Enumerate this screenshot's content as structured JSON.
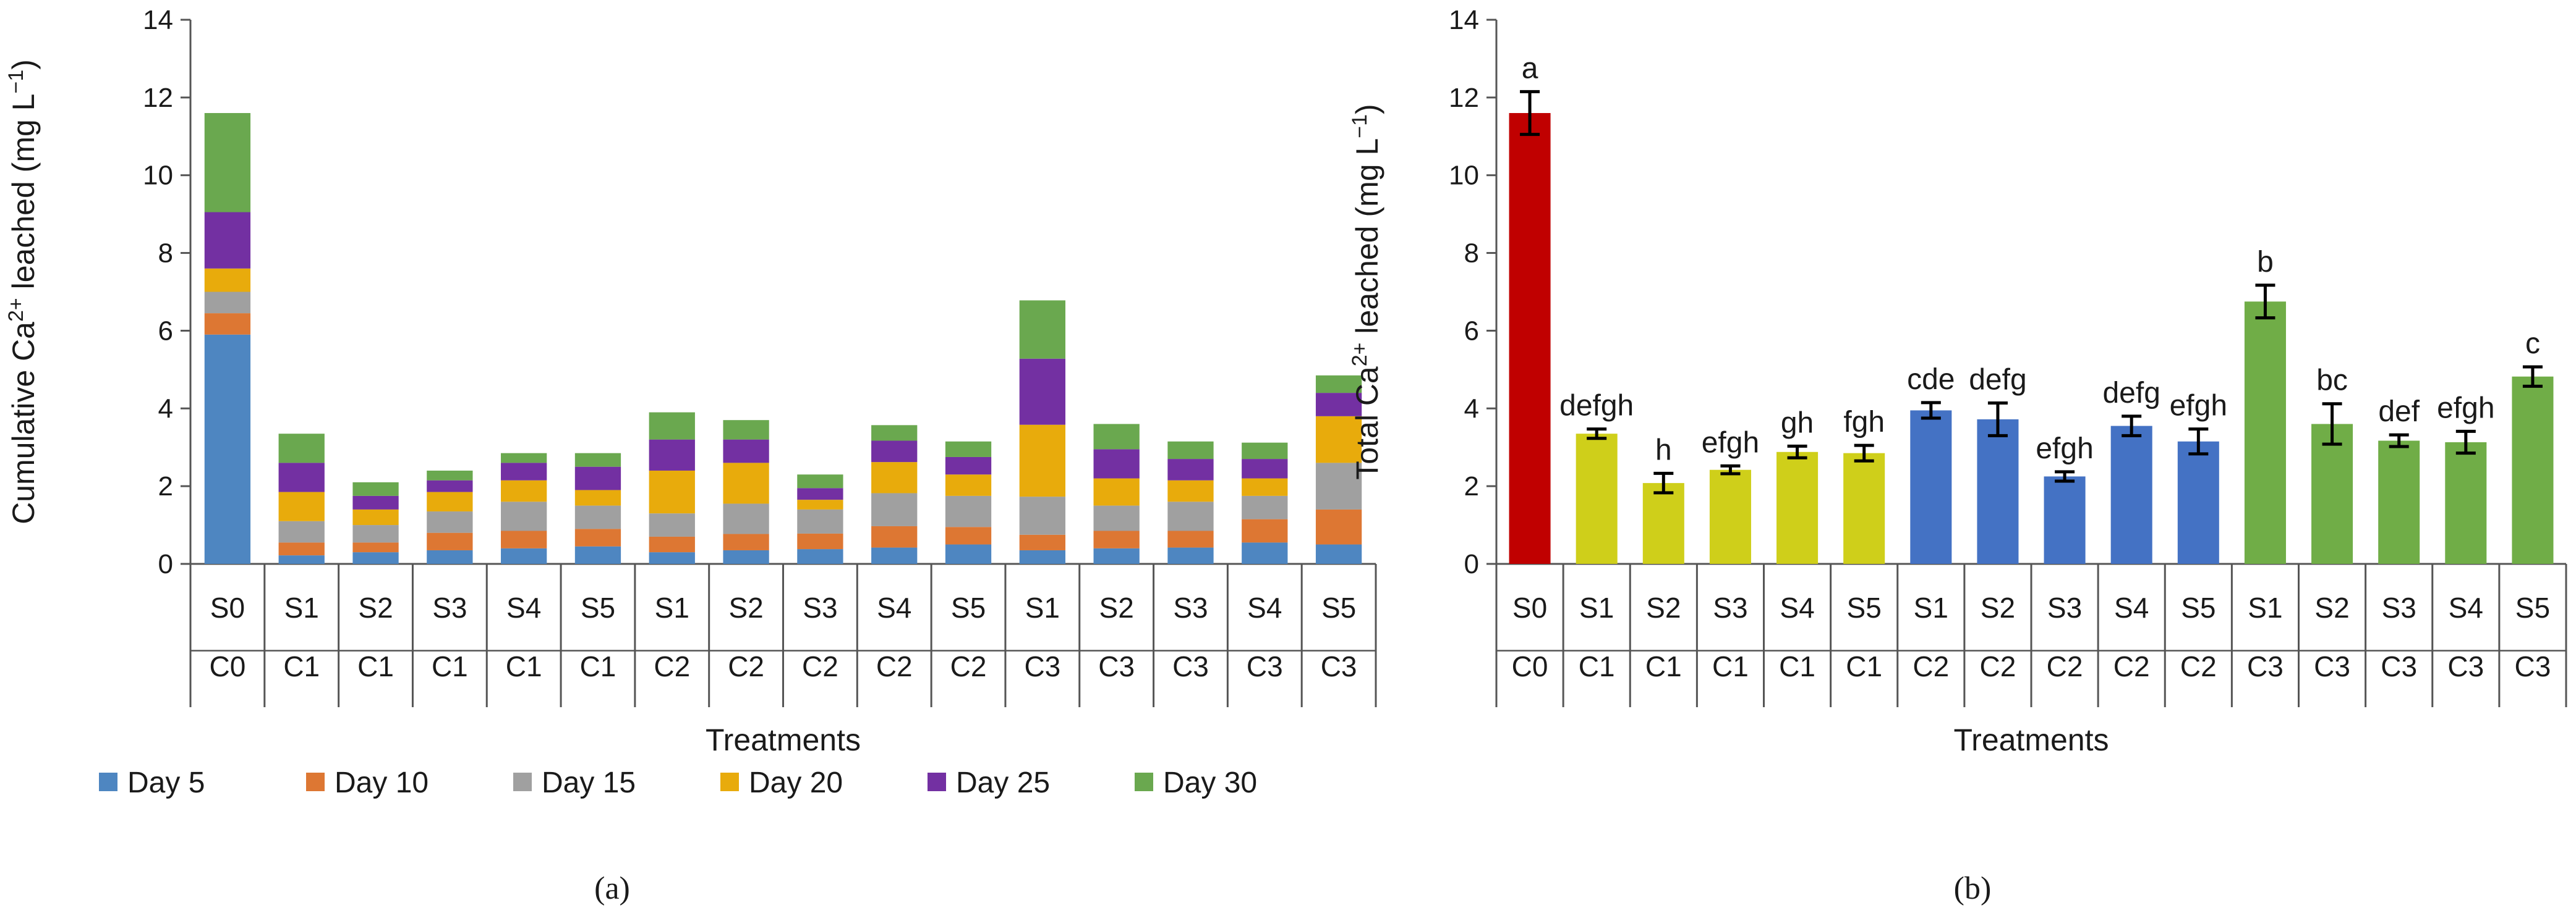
{
  "panels": [
    {
      "id": "a",
      "label": "(a)",
      "chart_data": {
        "type": "bar",
        "stacked": true,
        "categories": [
          [
            "S0",
            "C0"
          ],
          [
            "S1",
            "C1"
          ],
          [
            "S2",
            "C1"
          ],
          [
            "S3",
            "C1"
          ],
          [
            "S4",
            "C1"
          ],
          [
            "S5",
            "C1"
          ],
          [
            "S1",
            "C2"
          ],
          [
            "S2",
            "C2"
          ],
          [
            "S3",
            "C2"
          ],
          [
            "S4",
            "C2"
          ],
          [
            "S5",
            "C2"
          ],
          [
            "S1",
            "C3"
          ],
          [
            "S2",
            "C3"
          ],
          [
            "S3",
            "C3"
          ],
          [
            "S4",
            "C3"
          ],
          [
            "S5",
            "C3"
          ]
        ],
        "series": [
          {
            "name": "Day 5",
            "color": "#4e86c1",
            "values": [
              5.9,
              0.22,
              0.3,
              0.35,
              0.4,
              0.45,
              0.3,
              0.35,
              0.38,
              0.42,
              0.5,
              0.35,
              0.4,
              0.42,
              0.55,
              0.5
            ]
          },
          {
            "name": "Day 10",
            "color": "#dd7733",
            "values": [
              0.55,
              0.33,
              0.25,
              0.45,
              0.45,
              0.45,
              0.4,
              0.42,
              0.4,
              0.55,
              0.45,
              0.4,
              0.45,
              0.43,
              0.6,
              0.9
            ]
          },
          {
            "name": "Day 15",
            "color": "#a0a0a0",
            "values": [
              0.55,
              0.55,
              0.45,
              0.55,
              0.75,
              0.6,
              0.6,
              0.78,
              0.62,
              0.85,
              0.8,
              0.98,
              0.65,
              0.75,
              0.6,
              1.2
            ]
          },
          {
            "name": "Day 20",
            "color": "#e8ab0c",
            "values": [
              0.6,
              0.75,
              0.4,
              0.5,
              0.55,
              0.4,
              1.1,
              1.05,
              0.25,
              0.8,
              0.55,
              1.85,
              0.7,
              0.55,
              0.45,
              1.2
            ]
          },
          {
            "name": "Day 25",
            "color": "#7330a2",
            "values": [
              1.45,
              0.75,
              0.35,
              0.3,
              0.45,
              0.6,
              0.8,
              0.6,
              0.3,
              0.55,
              0.45,
              1.7,
              0.75,
              0.55,
              0.5,
              0.6
            ]
          },
          {
            "name": "Day 30",
            "color": "#6aa84f",
            "values": [
              2.55,
              0.75,
              0.35,
              0.25,
              0.25,
              0.35,
              0.7,
              0.5,
              0.35,
              0.4,
              0.4,
              1.5,
              0.65,
              0.45,
              0.42,
              0.45
            ]
          }
        ],
        "ylabel_main": "Cumulative Ca",
        "ylabel_sup": "2+",
        "ylabel_rest": " leached (mg L",
        "ylabel_sup2": "−1",
        "ylabel_end": ")",
        "xlabel": "Treatments",
        "ylim": [
          0,
          14
        ],
        "yticks": [
          0,
          2,
          4,
          6,
          8,
          10,
          12,
          14
        ],
        "legend_position": "bottom"
      }
    },
    {
      "id": "b",
      "label": "(b)",
      "chart_data": {
        "type": "bar",
        "stacked": false,
        "categories": [
          [
            "S0",
            "C0"
          ],
          [
            "S1",
            "C1"
          ],
          [
            "S2",
            "C1"
          ],
          [
            "S3",
            "C1"
          ],
          [
            "S4",
            "C1"
          ],
          [
            "S5",
            "C1"
          ],
          [
            "S1",
            "C2"
          ],
          [
            "S2",
            "C2"
          ],
          [
            "S3",
            "C2"
          ],
          [
            "S4",
            "C2"
          ],
          [
            "S5",
            "C2"
          ],
          [
            "S1",
            "C3"
          ],
          [
            "S2",
            "C3"
          ],
          [
            "S3",
            "C3"
          ],
          [
            "S4",
            "C3"
          ],
          [
            "S5",
            "C3"
          ]
        ],
        "values": [
          11.6,
          3.35,
          2.08,
          2.42,
          2.88,
          2.85,
          3.95,
          3.72,
          2.25,
          3.55,
          3.15,
          6.75,
          3.6,
          3.17,
          3.13,
          4.82
        ],
        "errors": [
          0.55,
          0.12,
          0.25,
          0.1,
          0.15,
          0.2,
          0.2,
          0.42,
          0.12,
          0.25,
          0.32,
          0.42,
          0.52,
          0.15,
          0.28,
          0.25
        ],
        "letters": [
          "a",
          "defgh",
          "h",
          "efgh",
          "gh",
          "fgh",
          "cde",
          "defg",
          "efgh",
          "defg",
          "efgh",
          "b",
          "bc",
          "def",
          "efgh",
          "c"
        ],
        "colors": [
          "#c00000",
          "#cfcf1a",
          "#cfcf1a",
          "#cfcf1a",
          "#cfcf1a",
          "#cfcf1a",
          "#4472c4",
          "#4472c4",
          "#4472c4",
          "#4472c4",
          "#4472c4",
          "#70ad47",
          "#70ad47",
          "#70ad47",
          "#70ad47",
          "#70ad47"
        ],
        "ylabel_main": "Total Ca",
        "ylabel_sup": "2+",
        "ylabel_rest": " leached (mg L",
        "ylabel_sup2": "−1",
        "ylabel_end": ")",
        "xlabel": "Treatments",
        "ylim": [
          0,
          14
        ],
        "yticks": [
          0,
          2,
          4,
          6,
          8,
          10,
          12,
          14
        ]
      }
    }
  ]
}
